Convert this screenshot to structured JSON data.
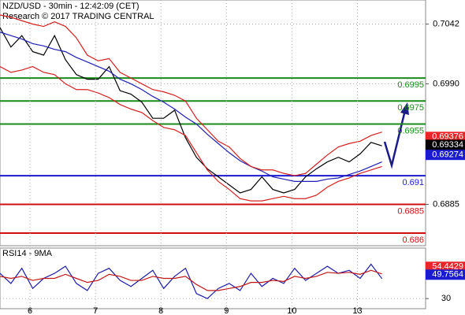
{
  "chart_data": [
    {
      "type": "line",
      "title": "NZD/USD - 30min - 12:42:09 (CET)",
      "subtitle": "Research © 2017 TRADING CENTRAL",
      "x": [
        0,
        4,
        8,
        12,
        16,
        20,
        24,
        28,
        32,
        36,
        40,
        44,
        48,
        52,
        56,
        60,
        64,
        68,
        72,
        76,
        80,
        84,
        88,
        92,
        96,
        100,
        104,
        108,
        112,
        116,
        120,
        124,
        128,
        132,
        136,
        140
      ],
      "xlim": [
        0,
        156
      ],
      "ylim": [
        0.6849,
        0.7063
      ],
      "yticks": [
        0.7042,
        {
          "value": 0.699,
          "label": "0.6990"
        },
        0.6885
      ],
      "grid": true,
      "series": [
        {
          "color": "#000000",
          "values": [
            0.7039,
            0.7022,
            0.7032,
            0.7018,
            0.7015,
            0.7032,
            0.7011,
            0.6998,
            0.6994,
            0.6994,
            0.7005,
            0.6984,
            0.6981,
            0.6974,
            0.696,
            0.696,
            0.6967,
            0.6943,
            0.6926,
            0.6916,
            0.6909,
            0.6902,
            0.6895,
            0.6898,
            0.6909,
            0.6898,
            0.6895,
            0.6898,
            0.6909,
            0.6916,
            0.6922,
            0.6926,
            0.6922,
            0.6929,
            0.6939,
            0.6936
          ]
        },
        {
          "color": "#1f1fb4",
          "values": [
            0.7035,
            0.7032,
            0.7029,
            0.7025,
            0.7023,
            0.702,
            0.7018,
            0.7013,
            0.7009,
            0.7005,
            0.7001,
            0.6994,
            0.699,
            0.6985,
            0.6979,
            0.6974,
            0.6968,
            0.6961,
            0.6955,
            0.6946,
            0.6938,
            0.693,
            0.6923,
            0.6918,
            0.6914,
            0.6909,
            0.6907,
            0.6905,
            0.6905,
            0.6905,
            0.6907,
            0.6908,
            0.6911,
            0.6914,
            0.6918,
            0.6922
          ]
        },
        {
          "color": "#d42020",
          "values": [
            0.705,
            0.7048,
            0.7045,
            0.7042,
            0.704,
            0.7044,
            0.704,
            0.703,
            0.7015,
            0.701,
            0.7012,
            0.7,
            0.6995,
            0.699,
            0.6985,
            0.6983,
            0.698,
            0.6975,
            0.696,
            0.695,
            0.694,
            0.6935,
            0.6925,
            0.6918,
            0.6915,
            0.6915,
            0.6912,
            0.691,
            0.6912,
            0.692,
            0.6928,
            0.6935,
            0.6938,
            0.694,
            0.6945,
            0.6948
          ]
        },
        {
          "color": "#d42020",
          "values": [
            0.7005,
            0.7,
            0.7002,
            0.7005,
            0.7,
            0.6998,
            0.699,
            0.6985,
            0.6985,
            0.6982,
            0.6978,
            0.6972,
            0.6968,
            0.6965,
            0.6958,
            0.6952,
            0.695,
            0.6945,
            0.693,
            0.6915,
            0.6905,
            0.6898,
            0.689,
            0.6888,
            0.6888,
            0.689,
            0.6892,
            0.689,
            0.689,
            0.6893,
            0.69,
            0.6905,
            0.6908,
            0.6912,
            0.6915,
            0.6918
          ]
        }
      ],
      "levels": [
        {
          "value": 0.6995,
          "color": "#1a8a1a"
        },
        {
          "value": 0.6975,
          "color": "#1a8a1a"
        },
        {
          "value": 0.6955,
          "color": "#1a8a1a"
        },
        {
          "value": 0.691,
          "color": "#1a1ad0"
        },
        {
          "value": 0.6885,
          "color": "#d01010"
        },
        {
          "value": 0.686,
          "color": "#d01010"
        }
      ],
      "markers": [
        {
          "value": 0.69376,
          "color": "#e8262a"
        },
        {
          "value": 0.69334,
          "color": "#000000"
        },
        {
          "value": 0.69274,
          "color": "#1a1ad0"
        }
      ]
    },
    {
      "type": "line",
      "title": "RSI14 - 9MA",
      "x": [
        0,
        4,
        8,
        12,
        16,
        20,
        24,
        28,
        32,
        36,
        40,
        44,
        48,
        52,
        56,
        60,
        64,
        68,
        72,
        76,
        80,
        84,
        88,
        92,
        96,
        100,
        104,
        108,
        112,
        116,
        120,
        124,
        128,
        132,
        136,
        140
      ],
      "xlim": [
        0,
        156
      ],
      "ylim": [
        20,
        80
      ],
      "yticks": [
        30
      ],
      "xticks": [
        {
          "value": 11,
          "label": "6"
        },
        {
          "value": 35,
          "label": "7"
        },
        {
          "value": 59,
          "label": "8"
        },
        {
          "value": 83,
          "label": "9"
        },
        {
          "value": 107,
          "label": "10"
        },
        {
          "value": 131,
          "label": "13"
        }
      ],
      "series": [
        {
          "color": "#1c1ca8",
          "values": [
            55,
            45,
            60,
            40,
            50,
            55,
            62,
            45,
            38,
            55,
            60,
            48,
            42,
            50,
            58,
            40,
            52,
            60,
            35,
            30,
            40,
            45,
            38,
            55,
            42,
            50,
            45,
            60,
            48,
            55,
            62,
            55,
            58,
            50,
            64,
            49.7564
          ]
        },
        {
          "color": "#c01818",
          "values": [
            52,
            50,
            52,
            48,
            50,
            50,
            54,
            50,
            46,
            48,
            54,
            52,
            48,
            48,
            52,
            50,
            50,
            52,
            44,
            38,
            38,
            40,
            42,
            46,
            46,
            48,
            47,
            52,
            50,
            52,
            56,
            55,
            56,
            54,
            58,
            54.4429
          ]
        }
      ],
      "markers": [
        {
          "value": 54.4429,
          "color": "#e8262a"
        },
        {
          "value": 49.7564,
          "color": "#1a1ad0"
        }
      ]
    }
  ]
}
